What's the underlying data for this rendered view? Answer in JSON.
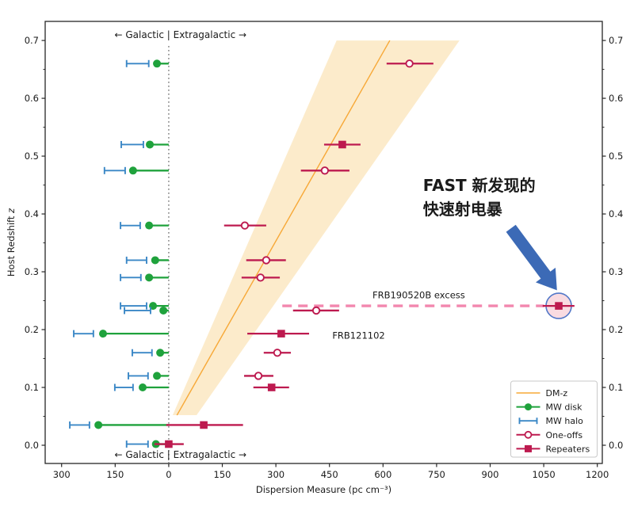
{
  "chart_data": {
    "type": "scatter",
    "xlabel": "Dispersion Measure (pc cm⁻³)",
    "ylabel": {
      "text": "Host Redshift ",
      "var": "z"
    },
    "xlim": [
      -346,
      1214
    ],
    "ylim": [
      -0.0315,
      0.733
    ],
    "x_ticks": [
      -300,
      -150,
      0,
      150,
      300,
      450,
      600,
      750,
      900,
      1050,
      1200
    ],
    "x_tick_labels": [
      "300",
      "150",
      "0",
      "150",
      "300",
      "450",
      "600",
      "750",
      "900",
      "1050",
      "1200"
    ],
    "y_ticks": [
      "0.0",
      "0.1",
      "0.2",
      "0.3",
      "0.4",
      "0.5",
      "0.6",
      "0.7"
    ],
    "y_minor_step": 0.05,
    "zone_label": "←  Galactic | Extragalactic  →",
    "zone_label_dm": 33,
    "dm_z_line": {
      "label": "DM-z",
      "points": [
        [
          23,
          0.052
        ],
        [
          619,
          0.7
        ]
      ]
    },
    "dm_z_band": [
      [
        11,
        0.052
      ],
      [
        470,
        0.7
      ],
      [
        814,
        0.7
      ],
      [
        78,
        0.052
      ]
    ],
    "frbs": [
      {
        "z": 0.66,
        "type": "one-off",
        "dm": 674,
        "dm_err": [
          610,
          741
        ],
        "mw_disk": 33,
        "mw_halo": [
          56,
          118
        ]
      },
      {
        "z": 0.52,
        "type": "repeater",
        "dm": 486,
        "dm_err": [
          435,
          537
        ],
        "mw_disk": 53,
        "mw_halo": [
          71,
          133
        ]
      },
      {
        "z": 0.475,
        "type": "one-off",
        "dm": 437,
        "dm_err": [
          370,
          506
        ],
        "mw_disk": 100,
        "mw_halo": [
          122,
          180
        ]
      },
      {
        "z": 0.38,
        "type": "one-off",
        "dm": 213,
        "dm_err": [
          155,
          273
        ],
        "mw_disk": 55,
        "mw_halo": [
          80,
          135
        ]
      },
      {
        "z": 0.32,
        "type": "one-off",
        "dm": 273,
        "dm_err": [
          217,
          328
        ],
        "mw_disk": 38,
        "mw_halo": [
          62,
          118
        ]
      },
      {
        "z": 0.29,
        "type": "one-off",
        "dm": 257,
        "dm_err": [
          204,
          311
        ],
        "mw_disk": 55,
        "mw_halo": [
          78,
          135
        ]
      },
      {
        "z": 0.241,
        "type": "repeater",
        "dm": 1092,
        "dm_err": [
          1047,
          1136
        ],
        "mw_disk": 44,
        "mw_halo": [
          62,
          135
        ],
        "name": "FRB190520B",
        "highlighted": true
      },
      {
        "z": 0.233,
        "type": "one-off",
        "dm": 413,
        "dm_err": [
          348,
          477
        ],
        "mw_disk": 15,
        "mw_halo": [
          51,
          124
        ]
      },
      {
        "z": 0.193,
        "type": "repeater",
        "dm": 315,
        "dm_err": [
          220,
          393
        ],
        "mw_disk": 184,
        "mw_halo": [
          211,
          266
        ],
        "name": "FRB121102"
      },
      {
        "z": 0.16,
        "type": "one-off",
        "dm": 304,
        "dm_err": [
          266,
          342
        ],
        "mw_disk": 24,
        "mw_halo": [
          47,
          102
        ]
      },
      {
        "z": 0.12,
        "type": "one-off",
        "dm": 251,
        "dm_err": [
          211,
          293
        ],
        "mw_disk": 33,
        "mw_halo": [
          58,
          113
        ]
      },
      {
        "z": 0.1,
        "type": "repeater",
        "dm": 288,
        "dm_err": [
          237,
          337
        ],
        "mw_disk": 73,
        "mw_halo": [
          100,
          151
        ]
      },
      {
        "z": 0.035,
        "type": "repeater",
        "dm": 98,
        "dm_err": [
          -7,
          208
        ],
        "mw_disk": 197,
        "mw_halo": [
          222,
          277
        ]
      },
      {
        "z": 0.002,
        "type": "repeater",
        "dm": 0,
        "dm_err": [
          -40,
          42
        ],
        "mw_disk": 36,
        "mw_halo": [
          58,
          118
        ]
      }
    ],
    "annotations": {
      "excess_label": {
        "text": "FRB190520B excess",
        "dm": 700,
        "z": 0.254
      },
      "excess_dash": {
        "z": 0.241,
        "dm_start": 318,
        "dm_end": 1051
      },
      "frb121102_label": {
        "text": "FRB121102",
        "dm": 458,
        "z": 0.19
      },
      "highlight_circle": {
        "dm": 1092,
        "z": 0.241,
        "radius_px": 16
      },
      "fast_label": {
        "lines": [
          "FAST 新发现的",
          "快速射电暴"
        ],
        "dm": 712,
        "z": 0.44
      },
      "arrow": {
        "tail_dm": 958,
        "tail_z": 0.375,
        "tip_dm": 1087,
        "tip_z": 0.268
      }
    },
    "legend": {
      "entries": [
        {
          "label": "DM-z",
          "marker": "line"
        },
        {
          "label": "MW disk",
          "marker": "disk"
        },
        {
          "label": "MW halo",
          "marker": "halo"
        },
        {
          "label": "One-offs",
          "marker": "one-off"
        },
        {
          "label": "Repeaters",
          "marker": "repeater"
        }
      ]
    },
    "colors": {
      "dmz_line": "#F7A837",
      "band": "#FCEBCB",
      "disk": "#1FA23C",
      "halo": "#3A87C6",
      "frb": "#BD1A4F",
      "dash": "#F287AE",
      "frb_label": "#E13D78",
      "highlight_fill": "#F9DBE1",
      "highlight_stroke": "#5378C8",
      "arrow": "#3C6AB6",
      "fast_text": "#F8140E",
      "axis": "#262626",
      "divider": "#8C8C8C"
    }
  }
}
